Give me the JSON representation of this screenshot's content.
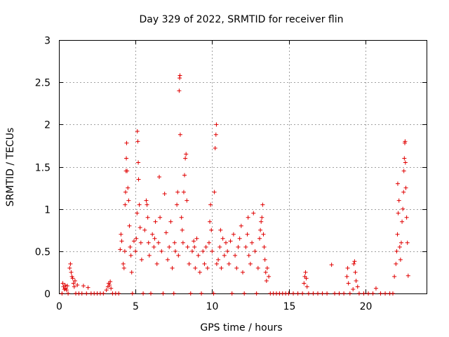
{
  "chart_data": {
    "type": "scatter",
    "title": "Day 329 of 2022, SRMTID for receiver flin",
    "xlabel": "GPS time / hours",
    "ylabel": "SRMTID / TECUs",
    "xlim": [
      0,
      24
    ],
    "ylim": [
      0,
      3
    ],
    "xticks": [
      0,
      5,
      10,
      15,
      20
    ],
    "yticks": [
      0,
      0.5,
      1,
      1.5,
      2,
      2.5,
      3
    ],
    "xtick_labels": [
      "0",
      "5",
      "10",
      "15",
      "20"
    ],
    "ytick_labels": [
      "0",
      "0.5",
      "1",
      "1.5",
      "2",
      "2.5",
      "3"
    ],
    "grid": true,
    "marker": "+",
    "series": [
      {
        "name": "SRMTID",
        "color": "#e00000",
        "points": [
          [
            0.2,
            0.0
          ],
          [
            0.25,
            0.12
          ],
          [
            0.3,
            0.08
          ],
          [
            0.35,
            0.05
          ],
          [
            0.4,
            0.1
          ],
          [
            0.45,
            0.06
          ],
          [
            0.5,
            0.04
          ],
          [
            0.55,
            0.09
          ],
          [
            0.6,
            0.0
          ],
          [
            0.7,
            0.3
          ],
          [
            0.75,
            0.35
          ],
          [
            0.8,
            0.25
          ],
          [
            0.85,
            0.2
          ],
          [
            0.9,
            0.18
          ],
          [
            0.95,
            0.12
          ],
          [
            1.0,
            0.08
          ],
          [
            1.05,
            0.15
          ],
          [
            1.1,
            0.0
          ],
          [
            1.2,
            0.1
          ],
          [
            1.3,
            0.0
          ],
          [
            1.5,
            0.0
          ],
          [
            1.6,
            0.09
          ],
          [
            1.8,
            0.0
          ],
          [
            1.9,
            0.07
          ],
          [
            2.1,
            0.0
          ],
          [
            2.3,
            0.0
          ],
          [
            2.5,
            0.0
          ],
          [
            2.7,
            0.0
          ],
          [
            2.9,
            0.0
          ],
          [
            3.1,
            0.04
          ],
          [
            3.2,
            0.08
          ],
          [
            3.25,
            0.12
          ],
          [
            3.3,
            0.1
          ],
          [
            3.35,
            0.14
          ],
          [
            3.4,
            0.06
          ],
          [
            3.5,
            0.0
          ],
          [
            3.7,
            0.0
          ],
          [
            3.9,
            0.0
          ],
          [
            4.0,
            0.52
          ],
          [
            4.05,
            0.7
          ],
          [
            4.1,
            0.62
          ],
          [
            4.2,
            0.35
          ],
          [
            4.25,
            0.3
          ],
          [
            4.3,
            0.5
          ],
          [
            4.32,
            1.05
          ],
          [
            4.35,
            1.2
          ],
          [
            4.38,
            1.45
          ],
          [
            4.4,
            1.6
          ],
          [
            4.42,
            1.78
          ],
          [
            4.45,
            1.45
          ],
          [
            4.5,
            1.25
          ],
          [
            4.55,
            1.1
          ],
          [
            4.6,
            0.8
          ],
          [
            4.65,
            0.55
          ],
          [
            4.7,
            0.45
          ],
          [
            4.75,
            0.25
          ],
          [
            4.8,
            0.0
          ],
          [
            4.9,
            0.62
          ],
          [
            5.0,
            0.5
          ],
          [
            5.05,
            0.65
          ],
          [
            5.1,
            0.95
          ],
          [
            5.12,
            1.92
          ],
          [
            5.15,
            1.8
          ],
          [
            5.18,
            1.55
          ],
          [
            5.2,
            1.35
          ],
          [
            5.25,
            1.05
          ],
          [
            5.3,
            0.78
          ],
          [
            5.35,
            0.6
          ],
          [
            5.4,
            0.4
          ],
          [
            5.5,
            0.0
          ],
          [
            5.6,
            0.75
          ],
          [
            5.7,
            1.1
          ],
          [
            5.75,
            1.05
          ],
          [
            5.8,
            0.9
          ],
          [
            5.85,
            0.6
          ],
          [
            5.9,
            0.45
          ],
          [
            6.0,
            0.0
          ],
          [
            6.1,
            0.7
          ],
          [
            6.2,
            0.55
          ],
          [
            6.25,
            0.65
          ],
          [
            6.3,
            0.85
          ],
          [
            6.4,
            0.35
          ],
          [
            6.5,
            0.6
          ],
          [
            6.55,
            1.38
          ],
          [
            6.6,
            0.9
          ],
          [
            6.7,
            0.5
          ],
          [
            6.8,
            0.0
          ],
          [
            6.9,
            1.18
          ],
          [
            7.0,
            0.72
          ],
          [
            7.1,
            0.4
          ],
          [
            7.2,
            0.55
          ],
          [
            7.3,
            0.85
          ],
          [
            7.4,
            0.3
          ],
          [
            7.5,
            0.0
          ],
          [
            7.55,
            0.6
          ],
          [
            7.6,
            0.5
          ],
          [
            7.7,
            1.05
          ],
          [
            7.75,
            1.2
          ],
          [
            7.8,
            0.45
          ],
          [
            7.85,
            2.4
          ],
          [
            7.88,
            2.55
          ],
          [
            7.9,
            2.58
          ],
          [
            7.92,
            1.88
          ],
          [
            8.0,
            0.9
          ],
          [
            8.05,
            0.75
          ],
          [
            8.1,
            0.6
          ],
          [
            8.15,
            1.2
          ],
          [
            8.2,
            1.4
          ],
          [
            8.25,
            1.6
          ],
          [
            8.3,
            1.65
          ],
          [
            8.35,
            1.1
          ],
          [
            8.4,
            0.55
          ],
          [
            8.5,
            0.35
          ],
          [
            8.6,
            0.0
          ],
          [
            8.7,
            0.5
          ],
          [
            8.8,
            0.62
          ],
          [
            8.85,
            0.55
          ],
          [
            8.9,
            0.3
          ],
          [
            9.0,
            0.65
          ],
          [
            9.1,
            0.45
          ],
          [
            9.2,
            0.25
          ],
          [
            9.3,
            0.0
          ],
          [
            9.4,
            0.5
          ],
          [
            9.5,
            0.35
          ],
          [
            9.6,
            0.55
          ],
          [
            9.7,
            0.3
          ],
          [
            9.8,
            0.6
          ],
          [
            9.85,
            0.85
          ],
          [
            9.9,
            1.05
          ],
          [
            9.95,
            0.75
          ],
          [
            10.0,
            0.5
          ],
          [
            10.1,
            0.0
          ],
          [
            10.15,
            1.2
          ],
          [
            10.2,
            1.72
          ],
          [
            10.25,
            1.88
          ],
          [
            10.28,
            2.0
          ],
          [
            10.3,
            0.35
          ],
          [
            10.4,
            0.4
          ],
          [
            10.5,
            0.55
          ],
          [
            10.55,
            0.75
          ],
          [
            10.6,
            0.3
          ],
          [
            10.7,
            0.65
          ],
          [
            10.8,
            0.45
          ],
          [
            10.9,
            0.6
          ],
          [
            11.0,
            0.5
          ],
          [
            11.1,
            0.35
          ],
          [
            11.2,
            0.62
          ],
          [
            11.3,
            0.0
          ],
          [
            11.4,
            0.7
          ],
          [
            11.5,
            0.45
          ],
          [
            11.6,
            0.3
          ],
          [
            11.7,
            0.55
          ],
          [
            11.8,
            0.65
          ],
          [
            11.9,
            0.8
          ],
          [
            12.0,
            0.25
          ],
          [
            12.1,
            0.0
          ],
          [
            12.2,
            0.55
          ],
          [
            12.3,
            0.7
          ],
          [
            12.35,
            0.9
          ],
          [
            12.4,
            0.45
          ],
          [
            12.5,
            0.35
          ],
          [
            12.6,
            0.6
          ],
          [
            12.7,
            0.95
          ],
          [
            12.8,
            0.5
          ],
          [
            12.9,
            0.0
          ],
          [
            13.0,
            0.3
          ],
          [
            13.1,
            0.65
          ],
          [
            13.15,
            0.75
          ],
          [
            13.2,
            0.85
          ],
          [
            13.25,
            0.9
          ],
          [
            13.3,
            1.05
          ],
          [
            13.35,
            0.7
          ],
          [
            13.4,
            0.55
          ],
          [
            13.45,
            0.4
          ],
          [
            13.5,
            0.25
          ],
          [
            13.55,
            0.15
          ],
          [
            13.6,
            0.3
          ],
          [
            13.7,
            0.2
          ],
          [
            13.8,
            0.0
          ],
          [
            14.0,
            0.0
          ],
          [
            14.2,
            0.0
          ],
          [
            14.4,
            0.0
          ],
          [
            14.6,
            0.0
          ],
          [
            14.8,
            0.0
          ],
          [
            15.0,
            0.0
          ],
          [
            15.3,
            0.0
          ],
          [
            15.6,
            0.0
          ],
          [
            15.9,
            0.0
          ],
          [
            16.0,
            0.12
          ],
          [
            16.05,
            0.2
          ],
          [
            16.1,
            0.25
          ],
          [
            16.15,
            0.18
          ],
          [
            16.2,
            0.08
          ],
          [
            16.3,
            0.0
          ],
          [
            16.6,
            0.0
          ],
          [
            16.9,
            0.0
          ],
          [
            17.2,
            0.0
          ],
          [
            17.5,
            0.0
          ],
          [
            17.8,
            0.34
          ],
          [
            18.0,
            0.0
          ],
          [
            18.3,
            0.0
          ],
          [
            18.6,
            0.0
          ],
          [
            18.8,
            0.2
          ],
          [
            18.85,
            0.3
          ],
          [
            18.9,
            0.12
          ],
          [
            19.0,
            0.0
          ],
          [
            19.2,
            0.05
          ],
          [
            19.25,
            0.35
          ],
          [
            19.3,
            0.38
          ],
          [
            19.35,
            0.25
          ],
          [
            19.4,
            0.15
          ],
          [
            19.5,
            0.08
          ],
          [
            19.6,
            0.0
          ],
          [
            19.9,
            0.0
          ],
          [
            20.2,
            0.0
          ],
          [
            20.5,
            0.0
          ],
          [
            20.7,
            0.06
          ],
          [
            21.0,
            0.0
          ],
          [
            21.3,
            0.0
          ],
          [
            21.6,
            0.0
          ],
          [
            21.8,
            0.0
          ],
          [
            21.9,
            0.2
          ],
          [
            22.0,
            0.35
          ],
          [
            22.05,
            0.5
          ],
          [
            22.1,
            0.7
          ],
          [
            22.12,
            1.3
          ],
          [
            22.15,
            0.95
          ],
          [
            22.2,
            1.1
          ],
          [
            22.25,
            0.55
          ],
          [
            22.3,
            0.4
          ],
          [
            22.35,
            0.6
          ],
          [
            22.4,
            0.85
          ],
          [
            22.45,
            1.0
          ],
          [
            22.5,
            1.2
          ],
          [
            22.52,
            1.45
          ],
          [
            22.55,
            1.6
          ],
          [
            22.58,
            1.78
          ],
          [
            22.6,
            1.8
          ],
          [
            22.62,
            1.55
          ],
          [
            22.65,
            1.25
          ],
          [
            22.7,
            0.9
          ],
          [
            22.75,
            0.6
          ],
          [
            22.8,
            0.21
          ]
        ]
      }
    ]
  }
}
